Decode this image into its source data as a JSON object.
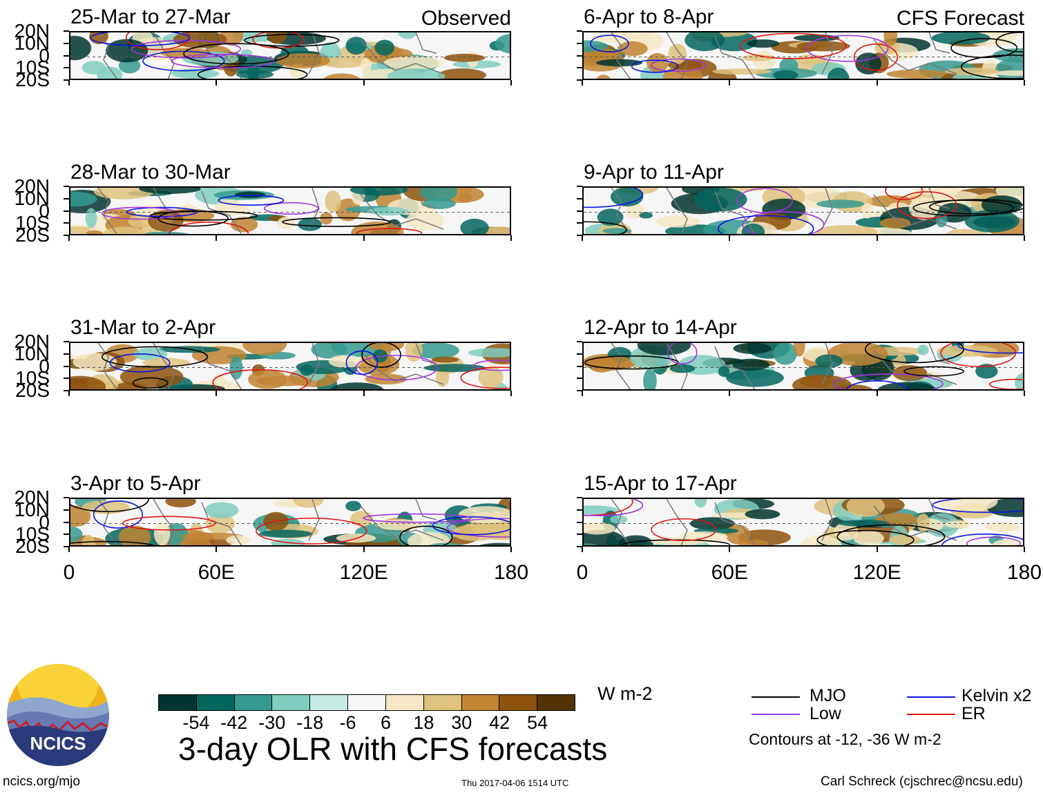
{
  "figure": {
    "title": "3-day OLR with CFS forecasts",
    "observed_label": "Observed",
    "forecast_label": "CFS Forecast",
    "website": "ncics.org/mjo",
    "timestamp": "Thu 2017-04-06 1514 UTC",
    "credit": "Carl Schreck (cjschrec@ncsu.edu)",
    "logo_text": "NCICS"
  },
  "chart_data": {
    "type": "heatmap",
    "variable": "OLR anomaly",
    "units": "W m-2",
    "x_axis": {
      "ticks": [
        "0",
        "60E",
        "120E",
        "180"
      ],
      "range": [
        0,
        180
      ]
    },
    "y_axis": {
      "ticks": [
        "20N",
        "10N",
        "0",
        "10S",
        "20S"
      ],
      "range": [
        -20,
        20
      ]
    },
    "panels": [
      {
        "period": "25-Mar to 27-Mar",
        "source": "Observed"
      },
      {
        "period": "28-Mar to 30-Mar",
        "source": "Observed"
      },
      {
        "period": "31-Mar to 2-Apr",
        "source": "Observed"
      },
      {
        "period": "3-Apr to 5-Apr",
        "source": "Observed"
      },
      {
        "period": "6-Apr to 8-Apr",
        "source": "CFS Forecast"
      },
      {
        "period": "9-Apr to 11-Apr",
        "source": "CFS Forecast"
      },
      {
        "period": "12-Apr to 14-Apr",
        "source": "CFS Forecast"
      },
      {
        "period": "15-Apr to 17-Apr",
        "source": "CFS Forecast"
      }
    ],
    "colorbar": {
      "labels": [
        "-54",
        "-42",
        "-30",
        "-18",
        "-6",
        "6",
        "18",
        "30",
        "42",
        "54"
      ],
      "colors": [
        "#01352f",
        "#03665f",
        "#359a8f",
        "#80cdc0",
        "#c6eae4",
        "#f6f6f6",
        "#f5e7c3",
        "#dfc27e",
        "#c08432",
        "#8d520c",
        "#553106"
      ],
      "units": "W m-2"
    },
    "legend": {
      "items": [
        {
          "name": "MJO",
          "color": "#000000"
        },
        {
          "name": "Kelvin x2",
          "color": "#0a14e0"
        },
        {
          "name": "Low",
          "color": "#a035e0"
        },
        {
          "name": "ER",
          "color": "#e01414"
        }
      ],
      "note": "Contours at -12, -36 W m-2"
    }
  }
}
